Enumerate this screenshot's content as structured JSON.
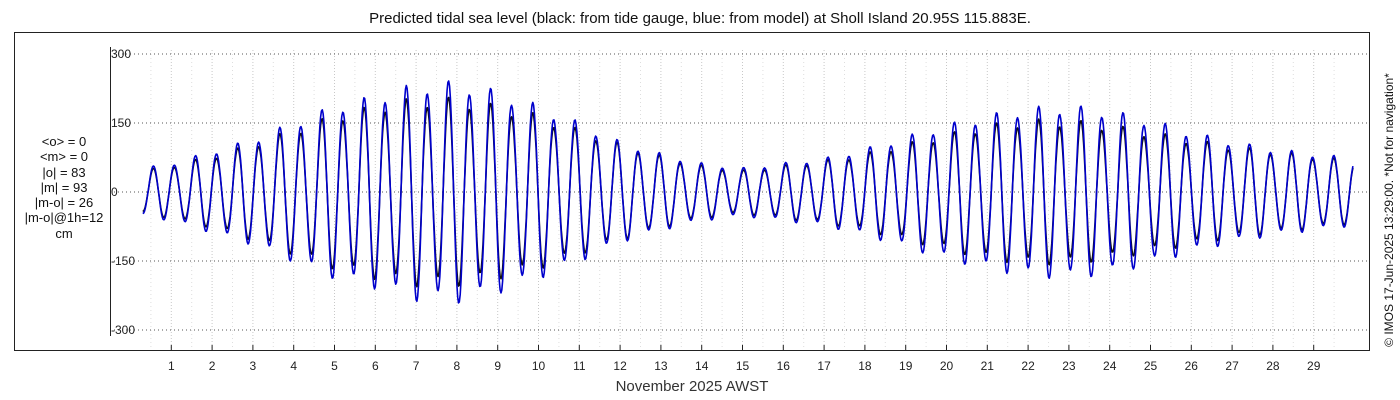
{
  "chart_data": {
    "type": "line",
    "title": "Predicted tidal sea level (black: from tide gauge, blue: from model) at Sholl Island 20.95S 115.883E.",
    "xlabel": "November 2025 AWST",
    "ylabel": "",
    "x_tick_labels": [
      "1",
      "2",
      "3",
      "4",
      "5",
      "6",
      "7",
      "8",
      "9",
      "10",
      "11",
      "12",
      "13",
      "14",
      "15",
      "16",
      "17",
      "18",
      "19",
      "20",
      "21",
      "22",
      "23",
      "24",
      "25",
      "26",
      "27",
      "28",
      "29"
    ],
    "x_range_days": [
      0,
      30
    ],
    "y_ticks": [
      -300,
      -150,
      0,
      150,
      300
    ],
    "y_tick_labels": [
      "-300",
      "-150",
      "0",
      "150",
      "300"
    ],
    "ylim": [
      -330,
      330
    ],
    "grid": true,
    "tidal_period_hours": 12.4,
    "envelope_note": "semi-diurnal tide amplitude (cm) read at each day tick",
    "series": [
      {
        "name": "black: from tide gauge",
        "color": "#111111",
        "amplitude_by_day": [
          40,
          55,
          75,
          100,
          130,
          160,
          180,
          195,
          195,
          180,
          160,
          130,
          100,
          75,
          55,
          45,
          55,
          65,
          80,
          100,
          120,
          140,
          150,
          150,
          140,
          125,
          110,
          95,
          85,
          75,
          65
        ]
      },
      {
        "name": "blue: from model",
        "color": "#0000cc",
        "amplitude_by_day": [
          45,
          60,
          85,
          110,
          145,
          180,
          200,
          225,
          230,
          210,
          180,
          145,
          105,
          80,
          60,
          50,
          60,
          70,
          90,
          115,
          140,
          160,
          175,
          180,
          170,
          150,
          125,
          105,
          90,
          80,
          70
        ]
      }
    ]
  },
  "stats_lines": [
    "<o> = 0",
    "<m> = 0",
    "|o| = 83",
    "|m| = 93",
    "|m-o| = 26",
    "|m-o|@1h=12",
    "cm"
  ],
  "copyright": "© IMOS 17-Jun-2025 13:29:00. *Not for navigation*"
}
